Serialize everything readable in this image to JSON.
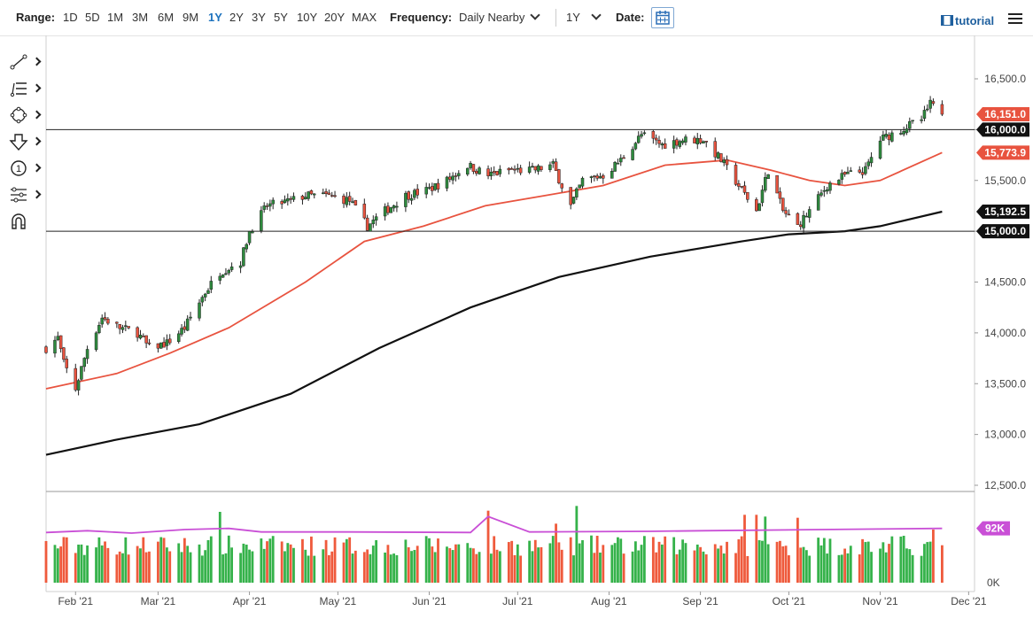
{
  "toolbar": {
    "range_label": "Range:",
    "ranges": [
      "1D",
      "5D",
      "1M",
      "3M",
      "6M",
      "9M",
      "1Y",
      "2Y",
      "3Y",
      "5Y",
      "10Y",
      "20Y",
      "MAX"
    ],
    "active_range": "1Y",
    "frequency_label": "Frequency:",
    "frequency_value": "Daily Nearby",
    "period_value": "1Y",
    "date_label": "Date:",
    "tutorial_label": "tutorial"
  },
  "drawing_tools": [
    "line-tool-icon",
    "fib-tool-icon",
    "shape-tool-icon",
    "arrow-tool-icon",
    "counter-tool-icon",
    "indicator-tool-icon",
    "magnet-icon"
  ],
  "colors": {
    "up_candle": "#2e8b3e",
    "down_candle": "#e8533f",
    "ma50": "#e8533f",
    "ma200": "#111111",
    "volume_avg": "#c94fd6",
    "badge_red": "#e8533f",
    "badge_black": "#111111",
    "badge_purple": "#c94fd6"
  },
  "chart_data": {
    "type": "candlestick",
    "x_ticks": [
      "Feb '21",
      "Mar '21",
      "Apr '21",
      "May '21",
      "Jun '21",
      "Jul '21",
      "Aug '21",
      "Sep '21",
      "Oct '21",
      "Nov '21",
      "Dec '21"
    ],
    "y_ticks": [
      "16,500.0",
      "16,000.0",
      "15,500.0",
      "15,000.0",
      "14,500.0",
      "14,000.0",
      "13,500.0",
      "13,000.0",
      "12,500.0"
    ],
    "ylim": [
      12500,
      16700
    ],
    "xlim": [
      "2021-01-22",
      "2021-12-03"
    ],
    "grid": false,
    "price_path": [
      [
        "2021-01-22",
        13850
      ],
      [
        "2021-01-26",
        13950
      ],
      [
        "2021-01-28",
        13700
      ],
      [
        "2021-02-01",
        13450
      ],
      [
        "2021-02-05",
        13850
      ],
      [
        "2021-02-10",
        14150
      ],
      [
        "2021-02-16",
        14050
      ],
      [
        "2021-02-22",
        14000
      ],
      [
        "2021-02-26",
        13850
      ],
      [
        "2021-03-04",
        13900
      ],
      [
        "2021-03-10",
        14050
      ],
      [
        "2021-03-17",
        14400
      ],
      [
        "2021-03-22",
        14600
      ],
      [
        "2021-03-29",
        14700
      ],
      [
        "2021-04-01",
        15000
      ],
      [
        "2021-04-07",
        15250
      ],
      [
        "2021-04-15",
        15300
      ],
      [
        "2021-04-20",
        15350
      ],
      [
        "2021-04-27",
        15350
      ],
      [
        "2021-05-05",
        15300
      ],
      [
        "2021-05-11",
        15050
      ],
      [
        "2021-05-17",
        15200
      ],
      [
        "2021-05-24",
        15350
      ],
      [
        "2021-05-31",
        15400
      ],
      [
        "2021-06-07",
        15500
      ],
      [
        "2021-06-14",
        15650
      ],
      [
        "2021-06-21",
        15550
      ],
      [
        "2021-06-28",
        15600
      ],
      [
        "2021-07-06",
        15600
      ],
      [
        "2021-07-13",
        15650
      ],
      [
        "2021-07-19",
        15250
      ],
      [
        "2021-07-23",
        15500
      ],
      [
        "2021-07-30",
        15550
      ],
      [
        "2021-08-05",
        15700
      ],
      [
        "2021-08-12",
        15950
      ],
      [
        "2021-08-19",
        15850
      ],
      [
        "2021-08-26",
        15900
      ],
      [
        "2021-09-02",
        15900
      ],
      [
        "2021-09-08",
        15700
      ],
      [
        "2021-09-14",
        15450
      ],
      [
        "2021-09-20",
        15200
      ],
      [
        "2021-09-24",
        15600
      ],
      [
        "2021-09-29",
        15200
      ],
      [
        "2021-10-04",
        15050
      ],
      [
        "2021-10-08",
        15200
      ],
      [
        "2021-10-14",
        15450
      ],
      [
        "2021-10-20",
        15550
      ],
      [
        "2021-10-27",
        15600
      ],
      [
        "2021-11-01",
        15900
      ],
      [
        "2021-11-08",
        16000
      ],
      [
        "2021-11-15",
        16100
      ],
      [
        "2021-11-18",
        16250
      ],
      [
        "2021-11-22",
        16151
      ]
    ],
    "ma50": [
      [
        "2021-01-22",
        13450
      ],
      [
        "2021-02-15",
        13600
      ],
      [
        "2021-03-05",
        13800
      ],
      [
        "2021-03-25",
        14050
      ],
      [
        "2021-04-20",
        14500
      ],
      [
        "2021-05-10",
        14900
      ],
      [
        "2021-05-30",
        15050
      ],
      [
        "2021-06-20",
        15250
      ],
      [
        "2021-07-10",
        15350
      ],
      [
        "2021-07-30",
        15450
      ],
      [
        "2021-08-20",
        15650
      ],
      [
        "2021-09-10",
        15700
      ],
      [
        "2021-09-25",
        15600
      ],
      [
        "2021-10-08",
        15500
      ],
      [
        "2021-10-20",
        15450
      ],
      [
        "2021-11-01",
        15500
      ],
      [
        "2021-11-22",
        15773.9
      ]
    ],
    "ma200": [
      [
        "2021-01-22",
        12800
      ],
      [
        "2021-02-15",
        12950
      ],
      [
        "2021-03-15",
        13100
      ],
      [
        "2021-04-15",
        13400
      ],
      [
        "2021-05-15",
        13850
      ],
      [
        "2021-06-15",
        14250
      ],
      [
        "2021-07-15",
        14550
      ],
      [
        "2021-08-15",
        14750
      ],
      [
        "2021-09-15",
        14900
      ],
      [
        "2021-10-01",
        14970
      ],
      [
        "2021-10-20",
        15000
      ],
      [
        "2021-11-01",
        15050
      ],
      [
        "2021-11-22",
        15192.5
      ]
    ],
    "horizontal_lines": [
      16000,
      15000
    ],
    "price_badges": [
      {
        "label": "16,151.0",
        "value": 16151,
        "style": "red"
      },
      {
        "label": "16,000.0",
        "value": 16000,
        "style": "black"
      },
      {
        "label": "15,773.9",
        "value": 15773.9,
        "style": "red"
      },
      {
        "label": "15,192.5",
        "value": 15192.5,
        "style": "black"
      },
      {
        "label": "15,000.0",
        "value": 15000,
        "style": "black"
      }
    ],
    "volume": {
      "y_ticks": [
        "0K"
      ],
      "ylim": [
        0,
        150
      ],
      "badge": {
        "label": "92K",
        "value": 92
      },
      "average_path": [
        [
          "2021-01-22",
          85
        ],
        [
          "2021-02-05",
          88
        ],
        [
          "2021-02-20",
          84
        ],
        [
          "2021-03-10",
          90
        ],
        [
          "2021-03-25",
          92
        ],
        [
          "2021-04-05",
          86
        ],
        [
          "2021-05-05",
          86
        ],
        [
          "2021-06-15",
          85
        ],
        [
          "2021-06-21",
          112
        ],
        [
          "2021-07-05",
          86
        ],
        [
          "2021-08-15",
          87
        ],
        [
          "2021-09-02",
          88
        ],
        [
          "2021-11-22",
          92
        ]
      ],
      "spikes": [
        [
          "2021-03-22",
          120,
          "up"
        ],
        [
          "2021-06-21",
          122,
          "up"
        ],
        [
          "2021-07-21",
          130,
          "down"
        ],
        [
          "2021-07-14",
          100,
          "down"
        ],
        [
          "2021-09-16",
          115,
          "up"
        ],
        [
          "2021-09-20",
          115,
          "down"
        ],
        [
          "2021-09-23",
          112,
          "down"
        ],
        [
          "2021-10-04",
          110,
          "down"
        ],
        [
          "2021-11-19",
          90,
          "down"
        ]
      ]
    }
  }
}
